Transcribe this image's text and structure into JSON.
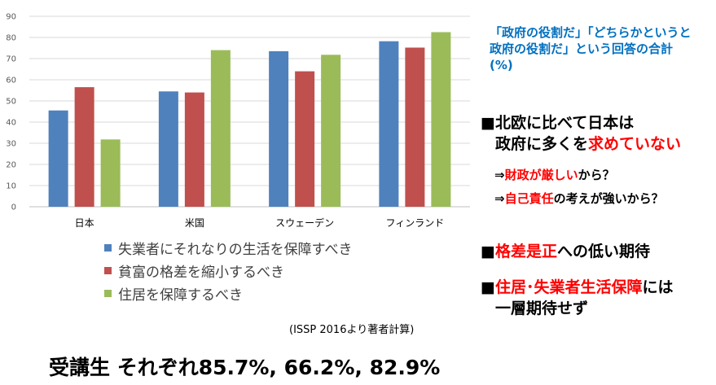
{
  "chart_data": {
    "type": "bar",
    "categories": [
      "日本",
      "米国",
      "スウェーデン",
      "フィンランド"
    ],
    "series": [
      {
        "name": "失業者にそれなりの生活を保障すべき",
        "values": [
          45.5,
          54.5,
          73.5,
          78.2
        ],
        "color": "#4f81bd"
      },
      {
        "name": "貧富の格差を縮小するべき",
        "values": [
          56.5,
          54.0,
          64.0,
          75.2
        ],
        "color": "#c0504d"
      },
      {
        "name": "住居を保障するべき",
        "values": [
          31.8,
          74.0,
          71.8,
          82.5
        ],
        "color": "#9bbb59"
      }
    ],
    "yticks": [
      "0",
      "10",
      "20",
      "30",
      "40",
      "50",
      "60",
      "70",
      "80",
      "90"
    ],
    "ylim": [
      0,
      90
    ],
    "grid": true,
    "legend_position": "bottom"
  },
  "source_note": "(ISSP 2016より著者計算)",
  "note_title": "「政府の役割だ」「どちらかというと政府の役割だ」という回答の合計 (%)",
  "bullets": {
    "b1_marker": "■",
    "b1_line1": "北欧に比べて日本は",
    "b1_line2_pre": "政府に多くを",
    "b1_line2_red": "求めていない",
    "sub1_arrow": "⇒",
    "sub1_red": "財政が厳しい",
    "sub1_post": "から？",
    "sub2_arrow": "⇒",
    "sub2_red": "自己責任",
    "sub2_post": "の考えが強いから？",
    "b2_marker": "■",
    "b2_red": "格差是正",
    "b2_post": "への低い期待",
    "b3_marker": "■",
    "b3_red": "住居･失業者生活保障",
    "b3_post": "には",
    "b3_line2": "一層期待せず"
  },
  "footer": "受講生 それぞれ85.7%, 66.2%, 82.9%"
}
